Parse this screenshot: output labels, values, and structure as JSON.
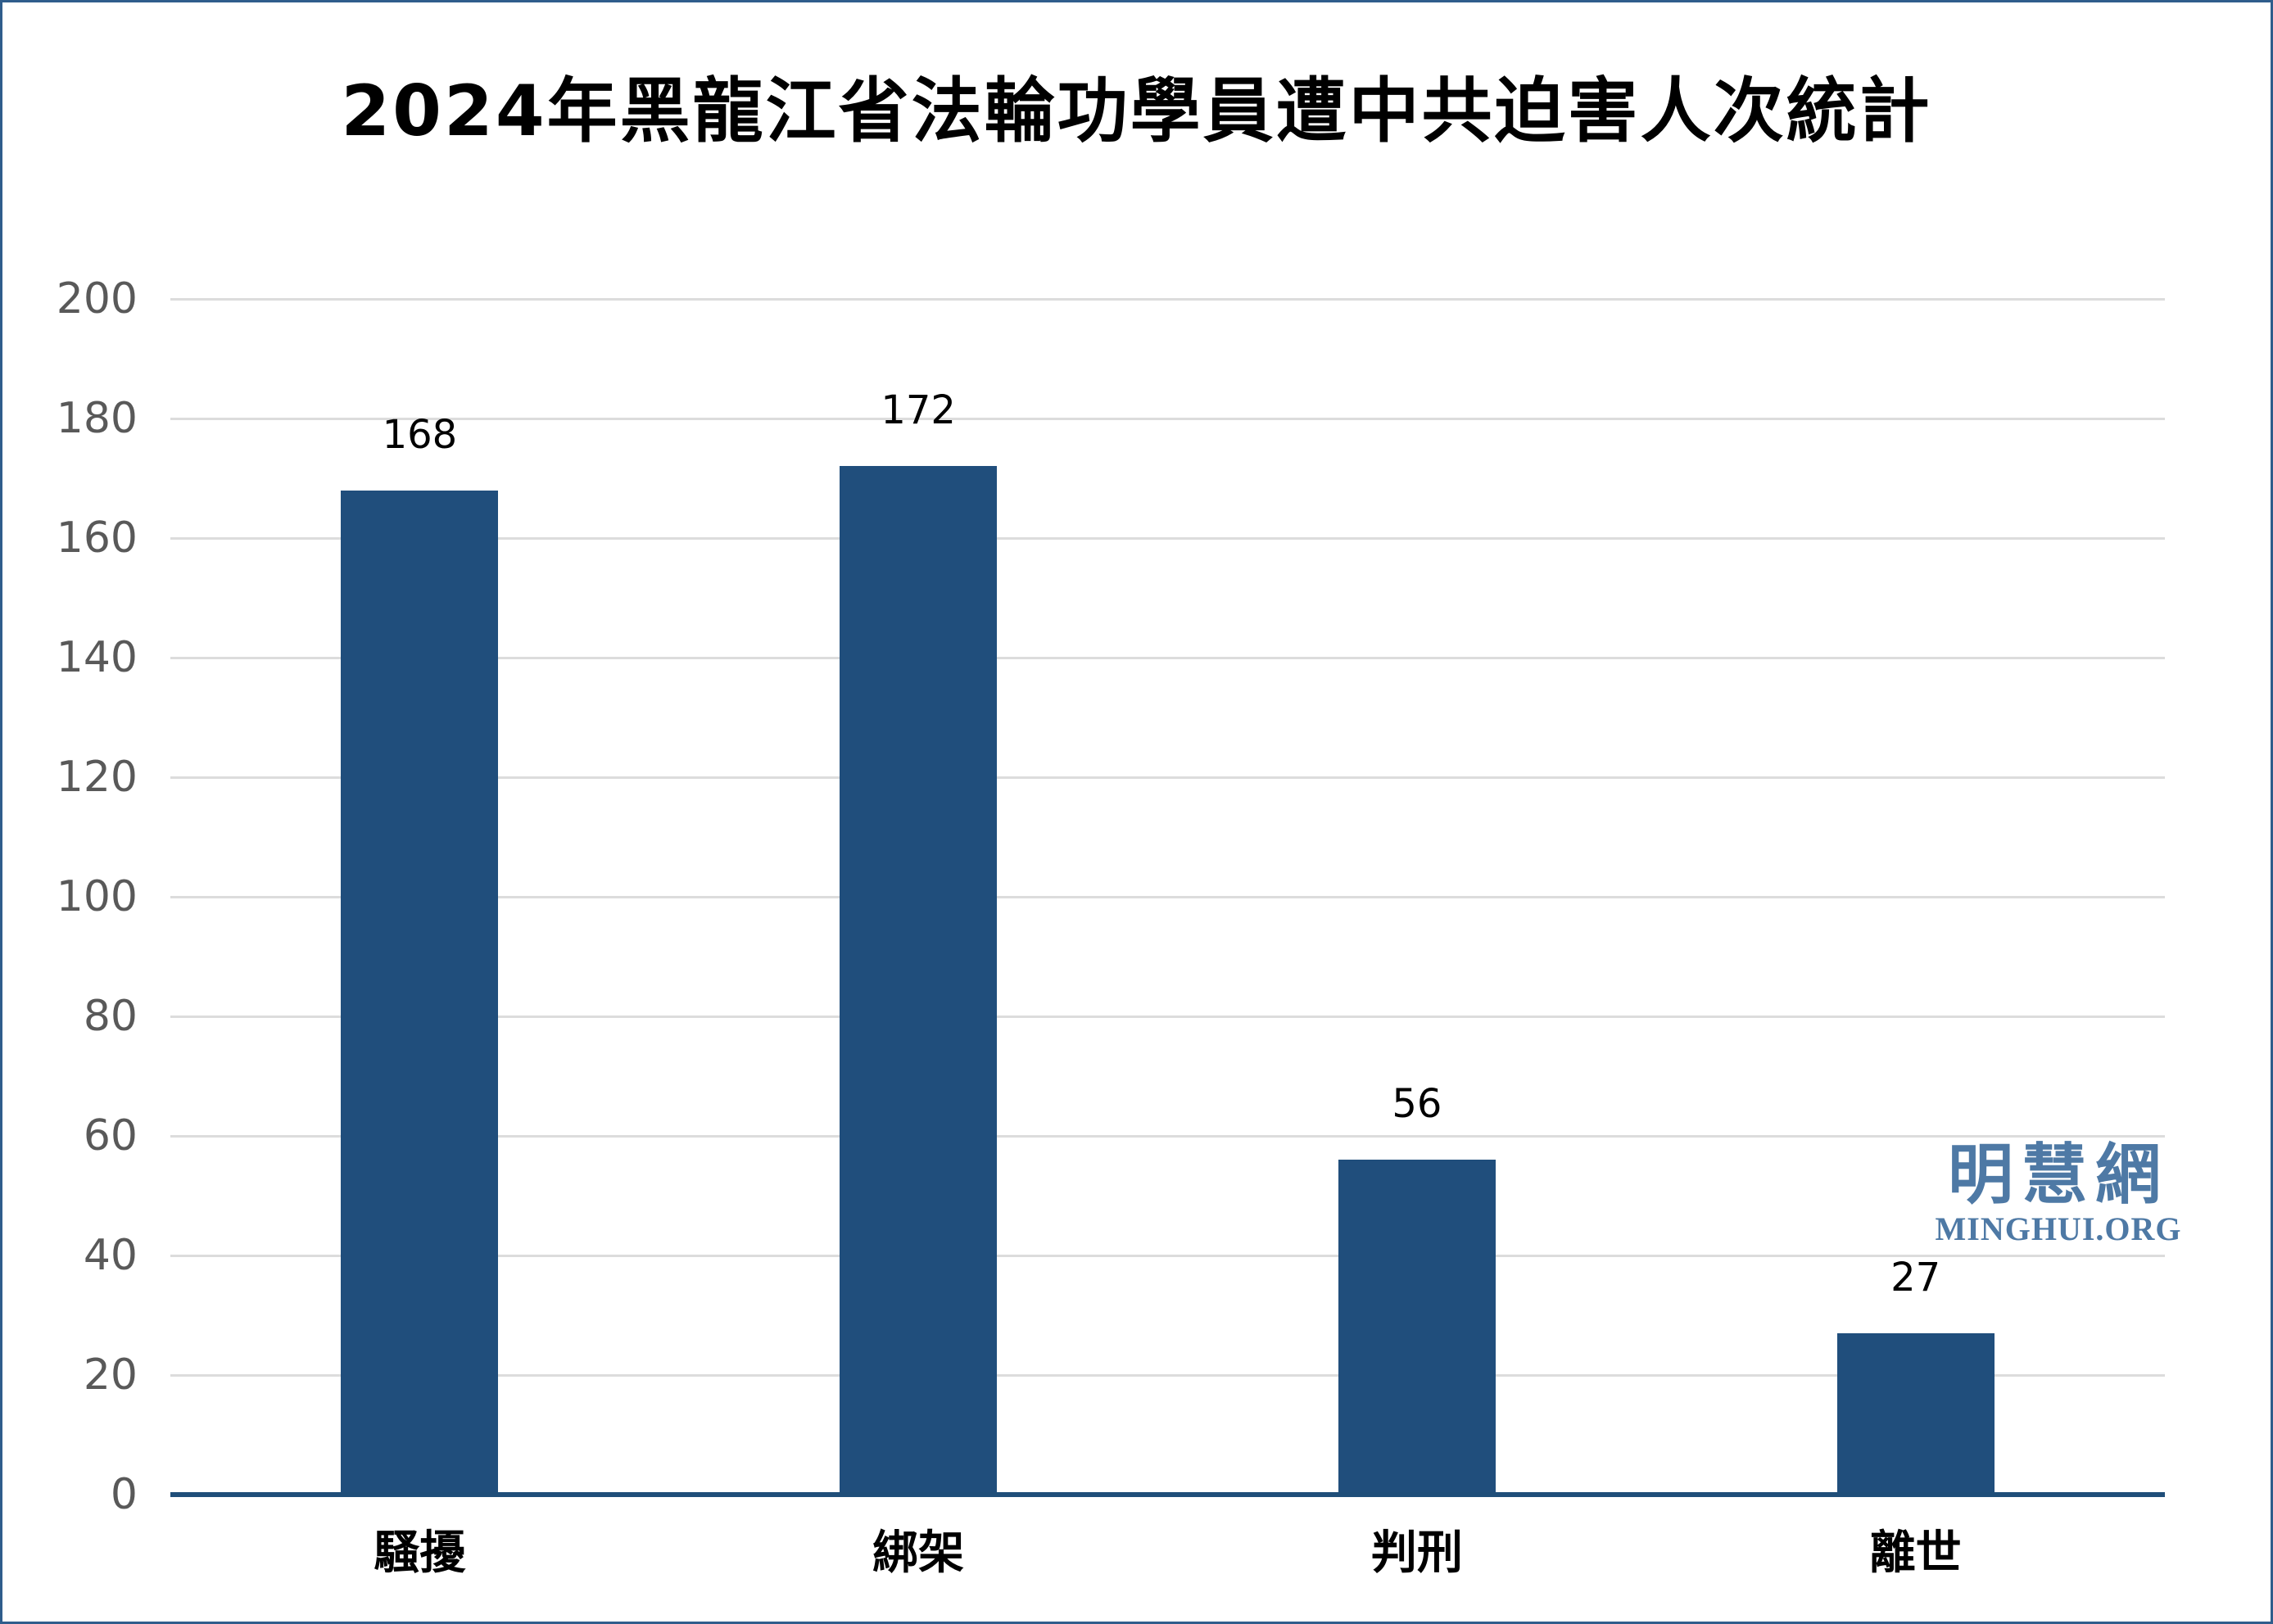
{
  "title": "2024年黑龍江省法輪功學員遭中共迫害人次統計",
  "watermark": {
    "cjk": "明慧網",
    "latin": "MINGHUI.ORG"
  },
  "colors": {
    "bar": "#204E7C",
    "baseline": "#1F4E79",
    "gridline": "#DCDCDC",
    "y_tick_label": "#595959",
    "value_label": "#000000",
    "title": "#000000",
    "watermark": "#4E79A5",
    "border": "#2F5D8C",
    "background": "#FFFFFF"
  },
  "chart_data": {
    "type": "bar",
    "title": "2024年黑龍江省法輪功學員遭中共迫害人次統計",
    "categories": [
      "騷擾",
      "綁架",
      "判刑",
      "離世"
    ],
    "values": [
      168,
      172,
      56,
      27
    ],
    "bar_value_labels": [
      "168",
      "172",
      "56",
      "27"
    ],
    "xlabel": "",
    "ylabel": "",
    "ylim": [
      0,
      200
    ],
    "ytick_interval": 20,
    "yticks": [
      0,
      20,
      40,
      60,
      80,
      100,
      120,
      140,
      160,
      180,
      200
    ],
    "grid": true,
    "legend": "none",
    "bar_color": "#204E7C"
  }
}
